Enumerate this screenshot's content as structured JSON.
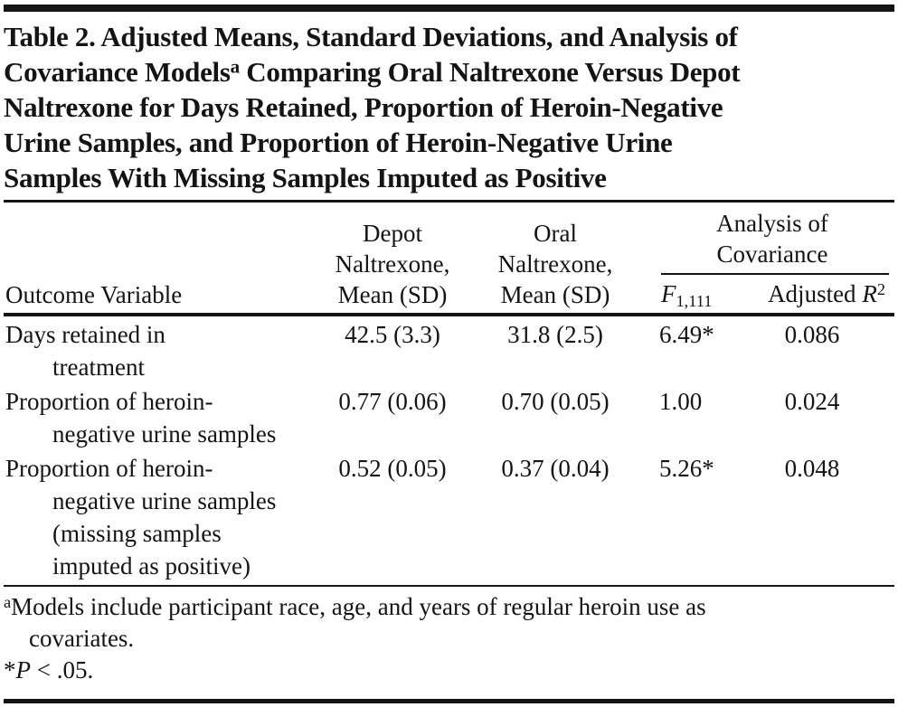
{
  "title": {
    "line1": "Table 2. Adjusted Means, Standard Deviations, and Analysis of",
    "line2_pre": "Covariance Models",
    "line2_sup": "a",
    "line2_post": " Comparing Oral Naltrexone Versus Depot",
    "line3": "Naltrexone for Days Retained, Proportion of Heroin-Negative",
    "line4": "Urine Samples, and Proportion of Heroin-Negative Urine",
    "line5": "Samples With Missing Samples Imputed as Positive"
  },
  "header": {
    "outcome": "Outcome Variable",
    "depot": "Depot\nNaltrexone,\nMean (SD)",
    "oral": "Oral\nNaltrexone,\nMean (SD)",
    "ancova_title": "Analysis of\nCovariance",
    "f_base": "F",
    "f_sub": "1,111",
    "r2_prefix": "Adjusted ",
    "r2_base": "R",
    "r2_sup": "2"
  },
  "rows": [
    {
      "outcome": "Days retained in\ntreatment",
      "depot": "42.5 (3.3)",
      "oral": "31.8 (2.5)",
      "f": "6.49*",
      "r2": "0.086"
    },
    {
      "outcome": "Proportion of heroin-\nnegative urine samples",
      "depot": "0.77 (0.06)",
      "oral": "0.70 (0.05)",
      "f": "1.00",
      "r2": "0.024"
    },
    {
      "outcome": "Proportion of heroin-\nnegative urine samples\n(missing samples\nimputed as positive)",
      "depot": "0.52 (0.05)",
      "oral": "0.37 (0.04)",
      "f": "5.26*",
      "r2": "0.048"
    }
  ],
  "footnotes": {
    "a_marker": "a",
    "a_text": "Models include participant race, age, and years of regular heroin use as\ncovariates.",
    "sig_star": "*",
    "sig_p": "P",
    "sig_rest": " < .05."
  },
  "colors": {
    "text": "#141414",
    "rule": "#141414",
    "background": "#ffffff"
  }
}
